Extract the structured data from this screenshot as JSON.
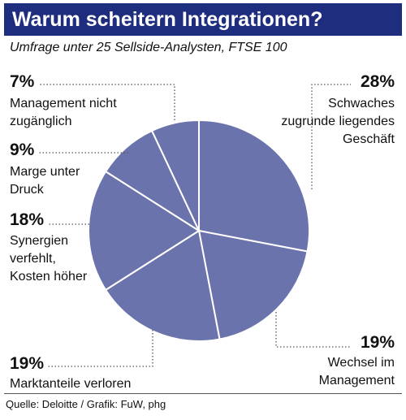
{
  "header": {
    "title": "Warum scheitern Integrationen?",
    "subtitle": "Umfrage unter 25 Sellside-Analysten, FTSE 100"
  },
  "footer": {
    "source": "Quelle: Deloitte / Grafik: FuW, phg"
  },
  "colors": {
    "title_bar": "#1f2d7f",
    "slice_fill": "#6b73ac",
    "slice_stroke": "#ffffff",
    "leader": "#555555"
  },
  "chart_data": {
    "type": "pie",
    "title": "Warum scheitern Integrationen?",
    "subtitle": "Umfrage unter 25 Sellside-Analysten, FTSE 100",
    "unit": "%",
    "slices": [
      {
        "pct_label": "28%",
        "value": 28,
        "label_lines": [
          "Schwaches",
          "zugrunde liegendes",
          "Geschäft"
        ]
      },
      {
        "pct_label": "19%",
        "value": 19,
        "label_lines": [
          "Wechsel im",
          "Management"
        ]
      },
      {
        "pct_label": "19%",
        "value": 19,
        "label_lines": [
          "Marktanteile verloren"
        ]
      },
      {
        "pct_label": "18%",
        "value": 18,
        "label_lines": [
          "Synergien",
          "verfehlt,",
          "Kosten höher"
        ]
      },
      {
        "pct_label": "9%",
        "value": 9,
        "label_lines": [
          "Marge unter",
          "Druck"
        ]
      },
      {
        "pct_label": "7%",
        "value": 7,
        "label_lines": [
          "Management nicht",
          "zugänglich"
        ]
      }
    ]
  }
}
